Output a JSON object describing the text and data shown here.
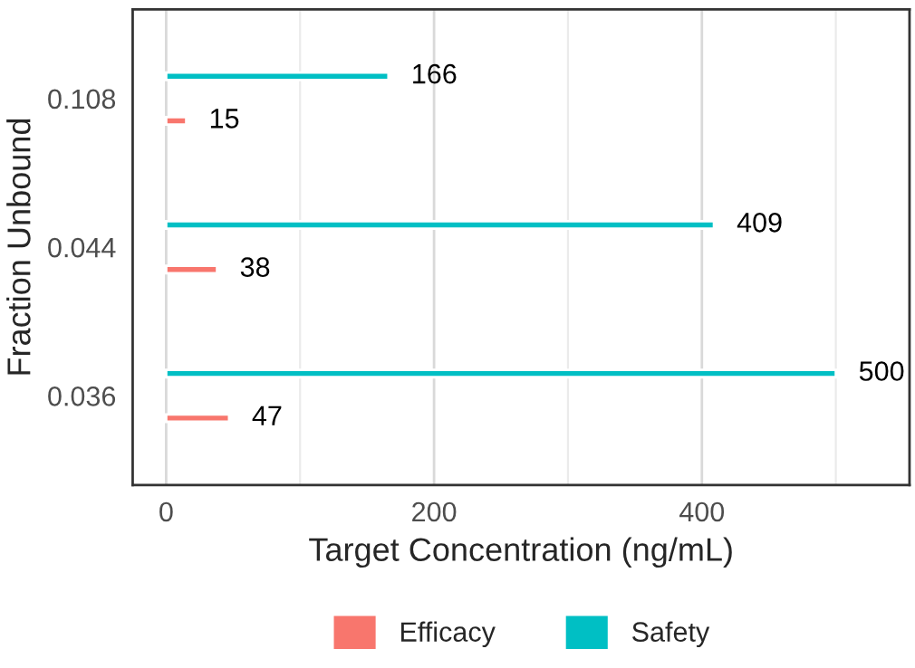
{
  "chart_data": {
    "type": "bar",
    "orientation": "horizontal",
    "xlabel": "Target Concentration (ng/mL)",
    "ylabel": "Fraction Unbound",
    "categories": [
      "0.108",
      "0.044",
      "0.036"
    ],
    "series": [
      {
        "name": "Efficacy",
        "color": "#f8766d",
        "values": [
          15,
          38,
          47
        ]
      },
      {
        "name": "Safety",
        "color": "#00bfc4",
        "values": [
          166,
          409,
          500
        ]
      }
    ],
    "xlim": [
      -25,
      555
    ],
    "xticks": [
      0,
      {
        "value": 100,
        "label": null
      },
      200,
      {
        "value": 300,
        "label": null
      },
      400,
      {
        "value": 500,
        "label": null
      }
    ],
    "grid": "x",
    "legend": "bottom",
    "data_labels": true
  }
}
